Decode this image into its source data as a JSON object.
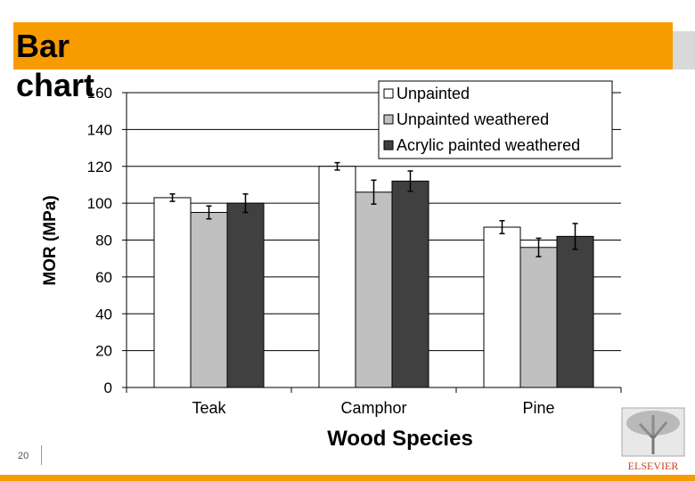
{
  "slide": {
    "title": "Bar chart",
    "page_number": "20",
    "logo_text": "ELSEVIER"
  },
  "chart_data": {
    "type": "bar",
    "x_label": "Wood Species",
    "y_label": "MOR (MPa)",
    "categories": [
      "Teak",
      "Camphor",
      "Pine"
    ],
    "series": [
      {
        "name": "Unpainted",
        "color": "#ffffff",
        "values": [
          103,
          120,
          87
        ],
        "errors": [
          2,
          2,
          3.5
        ]
      },
      {
        "name": "Unpainted weathered",
        "color": "#c0c0c0",
        "values": [
          95,
          106,
          76
        ],
        "errors": [
          3.5,
          6.5,
          5
        ]
      },
      {
        "name": "Acrylic painted weathered",
        "color": "#404040",
        "values": [
          100,
          112,
          82
        ],
        "errors": [
          5,
          5.5,
          7
        ]
      }
    ],
    "ylim": [
      0,
      160
    ],
    "yticks": [
      0,
      20,
      40,
      60,
      80,
      100,
      120,
      140,
      160
    ],
    "grid": true,
    "legend": "top-right"
  }
}
